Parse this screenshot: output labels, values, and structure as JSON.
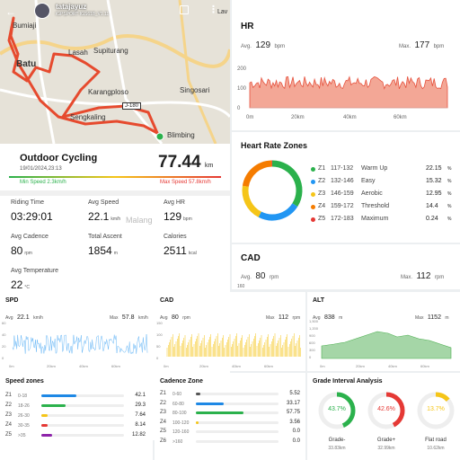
{
  "map": {
    "user": "tatajayuz",
    "device": "iGPSPORT IGS618_V1.11",
    "places": [
      "Bumiaji",
      "Batu",
      "Lasah",
      "Supiturang",
      "Karangploso",
      "Singosari",
      "Sengkaling",
      "Blimbing",
      "Malang",
      "Lav"
    ],
    "road_badge": "J-180"
  },
  "ride": {
    "title": "Outdoor Cycling",
    "date": "19/01/2024,23:13",
    "distance": "77.44",
    "distance_unit": "km",
    "min_speed": "Min Speed 2.3km/h",
    "max_speed": "Max Speed 57.8km/h",
    "stats": [
      {
        "label": "Riding Time",
        "value": "03:29:01",
        "unit": ""
      },
      {
        "label": "Avg Speed",
        "value": "22.1",
        "unit": "km/h"
      },
      {
        "label": "Avg HR",
        "value": "129",
        "unit": "bpm"
      },
      {
        "label": "Avg Cadence",
        "value": "80",
        "unit": "rpm"
      },
      {
        "label": "Total Ascent",
        "value": "1854",
        "unit": "m"
      },
      {
        "label": "Calories",
        "value": "2511",
        "unit": "kcal"
      },
      {
        "label": "Avg Temperature",
        "value": "22",
        "unit": "°C"
      }
    ]
  },
  "hr": {
    "title": "HR",
    "avg_label": "Avg.",
    "avg": "129",
    "avg_unit": "bpm",
    "max_label": "Max.",
    "max": "177",
    "max_unit": "bpm",
    "yticks": [
      "200",
      "100",
      "0"
    ],
    "xticks": [
      "0m",
      "20km",
      "40km",
      "60km"
    ]
  },
  "zones": {
    "title": "Heart Rate Zones",
    "items": [
      {
        "zone": "Z1",
        "range": "117-132",
        "name": "Warm Up",
        "pct": "22.15",
        "value": 22.15,
        "color": "#2bb14c"
      },
      {
        "zone": "Z2",
        "range": "132-146",
        "name": "Easy",
        "pct": "15.32",
        "value": 15.32,
        "color": "#2196f3"
      },
      {
        "zone": "Z3",
        "range": "146-159",
        "name": "Aerobic",
        "pct": "12.95",
        "value": 12.95,
        "color": "#f5c518"
      },
      {
        "zone": "Z4",
        "range": "159-172",
        "name": "Threshold",
        "pct": "14.4",
        "value": 14.4,
        "color": "#f57c00"
      },
      {
        "zone": "Z5",
        "range": "172-183",
        "name": "Maximum",
        "pct": "0.24",
        "value": 0.24,
        "color": "#e53935"
      }
    ],
    "pct_unit": "%"
  },
  "cad": {
    "title": "CAD",
    "avg_label": "Avg.",
    "avg": "80",
    "avg_unit": "rpm",
    "max_label": "Max.",
    "max": "112",
    "max_unit": "rpm",
    "ytick": "160"
  },
  "spd": {
    "title": "SPD",
    "avg_label": "Avg",
    "avg": "22.1",
    "avg_unit": "km/h",
    "max_label": "Max",
    "max": "57.8",
    "max_unit": "km/h",
    "yticks": [
      "60",
      "40",
      "20",
      "0"
    ],
    "xticks": [
      "0m",
      "20km",
      "40km",
      "60km"
    ]
  },
  "cad2": {
    "title": "CAD",
    "avg_label": "Avg",
    "avg": "80",
    "avg_unit": "rpm",
    "max_label": "Max",
    "max": "112",
    "max_unit": "rpm",
    "yticks": [
      "150",
      "100",
      "50",
      "0"
    ],
    "xticks": [
      "0m",
      "20km",
      "40km",
      "60km"
    ]
  },
  "alt": {
    "title": "ALT",
    "avg_label": "Avg",
    "avg": "838",
    "avg_unit": "m",
    "max_label": "Max",
    "max": "1152",
    "max_unit": "m",
    "yticks": [
      "1,500",
      "1,200",
      "900",
      "600",
      "300",
      "0"
    ],
    "xticks": [
      "0m",
      "20km",
      "40km",
      "60km"
    ]
  },
  "speed_zones": {
    "title": "Speed zones",
    "items": [
      {
        "zone": "Z1",
        "range": "0-18",
        "pct": "42.1",
        "value": 42.1,
        "color": "#1e88e5"
      },
      {
        "zone": "Z2",
        "range": "18-26",
        "pct": "29.3",
        "value": 29.3,
        "color": "#2bb14c"
      },
      {
        "zone": "Z3",
        "range": "26-30",
        "pct": "7.64",
        "value": 7.64,
        "color": "#f5c518"
      },
      {
        "zone": "Z4",
        "range": "30-35",
        "pct": "8.14",
        "value": 8.14,
        "color": "#e53935"
      },
      {
        "zone": "Z5",
        "range": ">35",
        "pct": "12.82",
        "value": 12.82,
        "color": "#8e24aa"
      }
    ]
  },
  "cadence_zones": {
    "title": "Cadence Zone",
    "items": [
      {
        "zone": "Z1",
        "range": "0-60",
        "pct": "5.52",
        "value": 5.52,
        "color": "#555"
      },
      {
        "zone": "Z2",
        "range": "60-80",
        "pct": "33.17",
        "value": 33.17,
        "color": "#1e88e5"
      },
      {
        "zone": "Z3",
        "range": "80-100",
        "pct": "57.75",
        "value": 57.75,
        "color": "#2bb14c"
      },
      {
        "zone": "Z4",
        "range": "100-120",
        "pct": "3.56",
        "value": 3.56,
        "color": "#f5c518"
      },
      {
        "zone": "Z5",
        "range": "120-160",
        "pct": "0.0",
        "value": 0.0,
        "color": "#e53935"
      },
      {
        "zone": "Z6",
        "range": ">160",
        "pct": "0.0",
        "value": 0.0,
        "color": "#8e24aa"
      }
    ]
  },
  "grade": {
    "title": "Grade Interval Analysis",
    "items": [
      {
        "name": "Grade-",
        "pct": "43.7%",
        "value": 43.7,
        "dist": "33.83km",
        "color": "#2bb14c"
      },
      {
        "name": "Grade+",
        "pct": "42.6%",
        "value": 42.6,
        "dist": "32.99km",
        "color": "#e53935"
      },
      {
        "name": "Flat road",
        "pct": "13.7%",
        "value": 13.7,
        "dist": "10.62km",
        "color": "#f5c518"
      }
    ]
  }
}
